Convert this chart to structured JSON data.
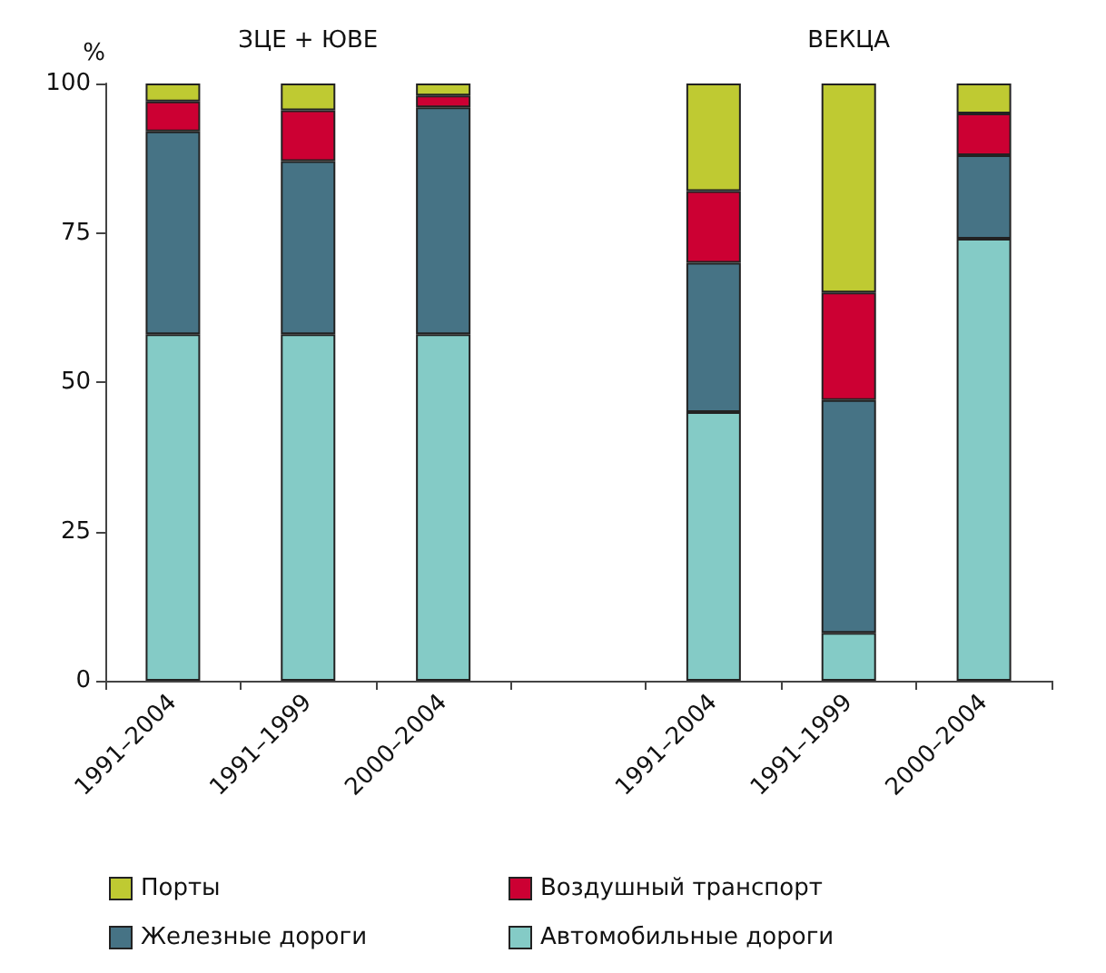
{
  "chart_data": {
    "type": "bar",
    "stacked": true,
    "ylabel": "%",
    "annotations": [
      "ЗЦЕ + ЮВЕ",
      "ВЕКЦА"
    ],
    "categories": [
      "1991–2004",
      "1991–1999",
      "2000–2004",
      null,
      "1991–2004",
      "1991–1999",
      "2000–2004"
    ],
    "series": [
      {
        "name": "Автомобильные дороги",
        "color": "#84cbc6",
        "values": [
          58,
          58,
          58,
          null,
          45,
          8,
          74
        ]
      },
      {
        "name": "Железные дороги",
        "color": "#467385",
        "values": [
          34,
          29,
          38,
          null,
          25,
          39,
          14
        ]
      },
      {
        "name": "Воздушный транспорт",
        "color": "#cc0033",
        "values": [
          5,
          8.5,
          2,
          null,
          12,
          18,
          7
        ]
      },
      {
        "name": "Порты",
        "color": "#bfca32",
        "values": [
          3,
          4.5,
          2,
          null,
          18,
          35,
          5
        ]
      }
    ],
    "ylim": [
      0,
      100
    ],
    "yticks": [
      0,
      25,
      50,
      75,
      100
    ],
    "grid": false,
    "legend": "bottom"
  }
}
